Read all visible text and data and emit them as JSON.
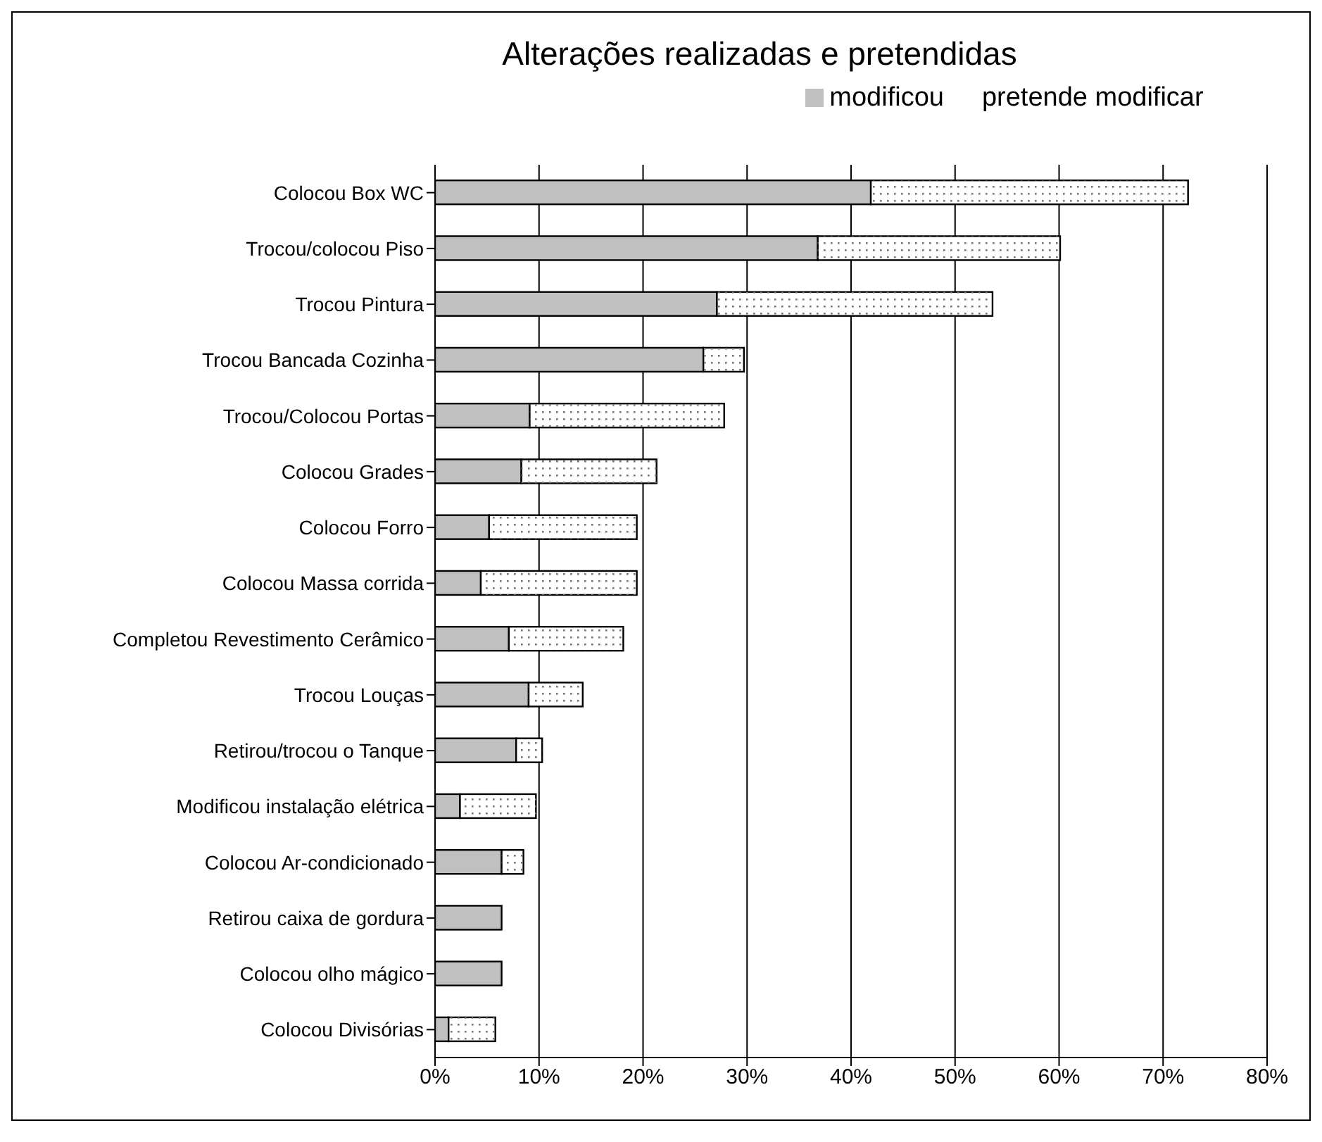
{
  "chart_data": {
    "type": "bar",
    "orientation": "horizontal",
    "stacked": true,
    "title": "Alterações realizadas e pretendidas",
    "categories": [
      "Colocou Box WC",
      "Trocou/colocou Piso",
      "Trocou Pintura",
      "Trocou Bancada Cozinha",
      "Trocou/Colocou Portas",
      "Colocou Grades",
      "Colocou Forro",
      "Colocou Massa corrida",
      "Completou Revestimento Cerâmico",
      "Trocou Louças ",
      "Retirou/trocou o Tanque",
      "Modificou instalação elétrica",
      "Colocou Ar-condicionado",
      "Retirou caixa de gordura",
      "Colocou olho mágico",
      "Colocou Divisórias"
    ],
    "series": [
      {
        "name": "modificou",
        "color": "#c0c0c0",
        "values": [
          41.9,
          36.8,
          27.1,
          25.8,
          9.1,
          8.3,
          5.2,
          4.4,
          7.1,
          9.0,
          7.8,
          2.4,
          6.4,
          6.4,
          6.4,
          1.3
        ]
      },
      {
        "name": "pretende modificar",
        "color": "#ffffff",
        "values": [
          30.5,
          23.3,
          26.5,
          3.9,
          18.7,
          13.0,
          14.2,
          15.0,
          11.0,
          5.2,
          2.5,
          7.3,
          2.1,
          null,
          null,
          4.5
        ]
      }
    ],
    "xlim": [
      0,
      80
    ],
    "xticks": [
      {
        "value": 0,
        "label": "0%"
      },
      {
        "value": 10,
        "label": "10%"
      },
      {
        "value": 20,
        "label": "20%"
      },
      {
        "value": 30,
        "label": "30%"
      },
      {
        "value": 40,
        "label": "40%"
      },
      {
        "value": 50,
        "label": "50%"
      },
      {
        "value": 60,
        "label": "60%"
      },
      {
        "value": 70,
        "label": "70%"
      },
      {
        "value": 80,
        "label": "80%"
      }
    ],
    "grid": "x",
    "legend": "top"
  }
}
